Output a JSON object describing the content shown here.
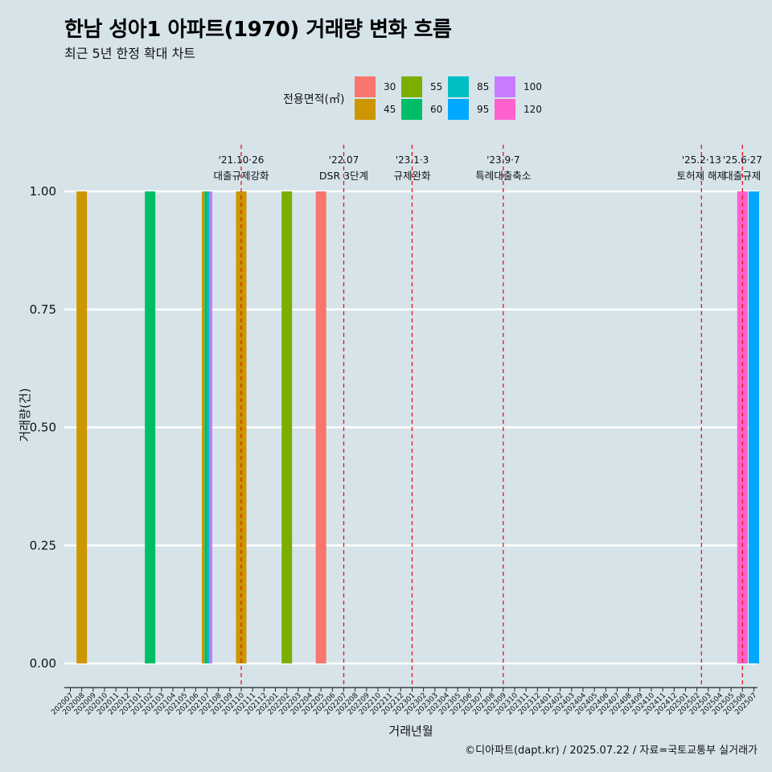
{
  "chart_data": {
    "type": "bar",
    "title": "한남 성아1 아파트(1970) 거래량 변화 흐름",
    "subtitle": "최근 5년 한정 확대 차트",
    "xlabel": "거래년월",
    "ylabel": "거래량(건)",
    "caption": "©디아파트(dapt.kr) / 2025.07.22 / 자료=국토교통부 실거래가",
    "ylim": [
      0,
      1
    ],
    "y_ticks": [
      "0.00",
      "0.25",
      "0.50",
      "0.75",
      "1.00"
    ],
    "grid": true,
    "legend": {
      "title": "전용면적(㎡)",
      "placement": "top",
      "entries": [
        {
          "label": "30",
          "color": "#F8766D"
        },
        {
          "label": "45",
          "color": "#CD9600"
        },
        {
          "label": "55",
          "color": "#7CAE00"
        },
        {
          "label": "60",
          "color": "#00BE67"
        },
        {
          "label": "85",
          "color": "#00BFC4"
        },
        {
          "label": "95",
          "color": "#00A9FF"
        },
        {
          "label": "100",
          "color": "#C77CFF"
        },
        {
          "label": "120",
          "color": "#FF61CC"
        }
      ]
    },
    "categories": [
      "202007",
      "202008",
      "202009",
      "202010",
      "202011",
      "202012",
      "202101",
      "202102",
      "202103",
      "202104",
      "202105",
      "202106",
      "202107",
      "202108",
      "202109",
      "202110",
      "202111",
      "202112",
      "202201",
      "202202",
      "202203",
      "202204",
      "202205",
      "202206",
      "202207",
      "202208",
      "202209",
      "202210",
      "202211",
      "202212",
      "202301",
      "202302",
      "202303",
      "202304",
      "202305",
      "202306",
      "202307",
      "202308",
      "202309",
      "202310",
      "202311",
      "202312",
      "202401",
      "202402",
      "202403",
      "202404",
      "202405",
      "202406",
      "202407",
      "202408",
      "202409",
      "202410",
      "202411",
      "202412",
      "202501",
      "202502",
      "202503",
      "202504",
      "202505",
      "202506",
      "202507"
    ],
    "bars": [
      {
        "x": "202008",
        "area": "45",
        "value": 1
      },
      {
        "x": "202102",
        "area": "60",
        "value": 1
      },
      {
        "x": "202107",
        "area": "45",
        "value": 1
      },
      {
        "x": "202107",
        "area": "60",
        "value": 1
      },
      {
        "x": "202107",
        "area": "85",
        "value": 1
      },
      {
        "x": "202107",
        "area": "100",
        "value": 1
      },
      {
        "x": "202110",
        "area": "45",
        "value": 1
      },
      {
        "x": "202202",
        "area": "55",
        "value": 1
      },
      {
        "x": "202205",
        "area": "30",
        "value": 1
      },
      {
        "x": "202506",
        "area": "120",
        "value": 1
      },
      {
        "x": "202507",
        "area": "95",
        "value": 1
      }
    ],
    "annotations": [
      {
        "date": "'21.10·26",
        "label": "대출규제강화",
        "x": "202110",
        "offset": 0.0
      },
      {
        "date": "'22.07",
        "label": "DSR 3단계",
        "x": "202207",
        "offset": 0.0
      },
      {
        "date": "'23.1·3",
        "label": "규제완화",
        "x": "202301",
        "offset": 0.0
      },
      {
        "date": "'23.9·7",
        "label": "특례대출축소",
        "x": "202309",
        "offset": 0.0
      },
      {
        "date": "'25.2·13",
        "label": "토허제 해제",
        "x": "202502",
        "offset": 0.4
      },
      {
        "date": "'25.6·27",
        "label": "대출규제",
        "x": "202506",
        "offset": 0.0
      }
    ]
  }
}
